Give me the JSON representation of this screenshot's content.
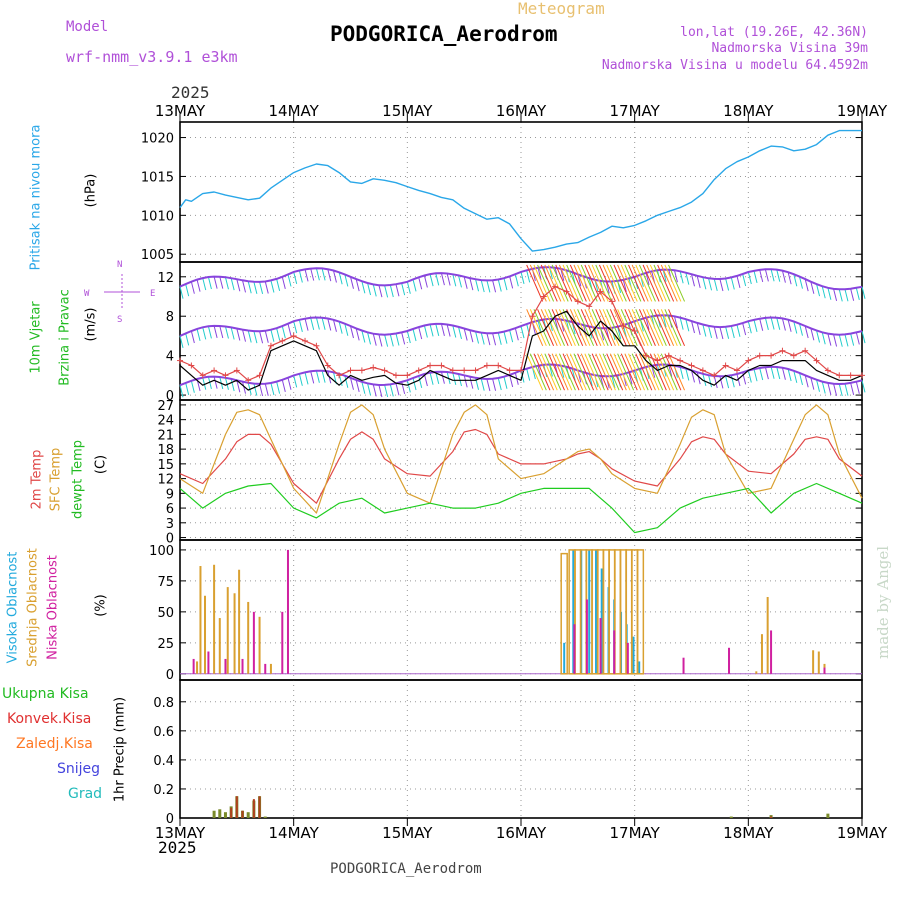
{
  "header": {
    "model_label": "Model",
    "model_name": "wrf-nmm_v3.9.1 e3km",
    "meteogram_label": "Meteogram",
    "station": "PODGORICA_Aerodrom",
    "lonlat": "lon,lat (19.26E, 42.36N)",
    "elevation": "Nadmorska Visina 39m",
    "model_elevation": "Nadmorska Visina u modelu 64.4592m",
    "year_top": "2025",
    "year_bottom": "2025",
    "footer_station": "PODGORICA_Aerodrom",
    "watermark": "made by Angel"
  },
  "colors": {
    "pressure": "#2aa7e8",
    "temp2m": "#e04848",
    "sfc": "#d9a030",
    "dewpt": "#1fcc1f",
    "high_cloud": "#22aadd",
    "mid_cloud": "#d9a030",
    "low_cloud": "#d020a0",
    "total_rain": "#22bb22",
    "conv_rain": "#e03030",
    "frozen": "#ff7722",
    "snow": "#4444dd",
    "grad": "#22bbbb",
    "wind_gust": "#e04848",
    "wind_speed": "#000000"
  },
  "panel_labels": {
    "pressure": [
      "Pritisak na nivou mora",
      "(hPa)"
    ],
    "wind": [
      "10m Vjetar",
      "Brzina i Pravac",
      "(m/s)"
    ],
    "compass": {
      "n": "N",
      "s": "S",
      "e": "E",
      "w": "W"
    },
    "temp": [
      "2m Temp",
      "SFC Temp",
      "dewpt Temp",
      "(C)"
    ],
    "cloud": [
      "Visoka Oblacnost",
      "Srednja Oblacnost",
      "Niska Oblacnost",
      "(%)"
    ],
    "precip_axis": [
      "1hr Precip (mm)"
    ],
    "precip_legend": [
      "Ukupna Kisa",
      "Konvek.Kisa",
      "Zaledj.Kisa",
      "Snijeg",
      "Grad"
    ]
  },
  "chart_data": {
    "type": "line",
    "x_axis": {
      "unit": "day index (0 = 13MAY 00Z)",
      "range": [
        0,
        6
      ],
      "tick_labels": [
        "13MAY",
        "14MAY",
        "15MAY",
        "16MAY",
        "17MAY",
        "18MAY",
        "19MAY"
      ]
    },
    "panels": {
      "pressure": {
        "ylabel": "hPa",
        "ylim": [
          1004,
          1022
        ],
        "yticks": [
          1005,
          1010,
          1015,
          1020
        ],
        "series": [
          {
            "name": "MSL pressure",
            "color_key": "pressure",
            "x": [
              0,
              0.05,
              0.1,
              0.2,
              0.3,
              0.4,
              0.5,
              0.6,
              0.7,
              0.8,
              0.9,
              1.0,
              1.1,
              1.2,
              1.3,
              1.4,
              1.5,
              1.6,
              1.7,
              1.8,
              1.9,
              2.0,
              2.1,
              2.2,
              2.3,
              2.4,
              2.5,
              2.6,
              2.7,
              2.8,
              2.9,
              3.0,
              3.1,
              3.2,
              3.3,
              3.4,
              3.5,
              3.6,
              3.7,
              3.8,
              3.9,
              4.0,
              4.1,
              4.2,
              4.3,
              4.4,
              4.5,
              4.6,
              4.7,
              4.8,
              4.9,
              5.0,
              5.1,
              5.2,
              5.3,
              5.4,
              5.5,
              5.6,
              5.7,
              5.8,
              5.9,
              6.0
            ],
            "y": [
              1011,
              1012,
              1011.8,
              1012.8,
              1013,
              1012.6,
              1012.3,
              1012,
              1012.2,
              1013.5,
              1014.5,
              1015.5,
              1016.1,
              1016.6,
              1016.4,
              1015.5,
              1014.3,
              1014.1,
              1014.7,
              1014.5,
              1014.2,
              1013.7,
              1013.2,
              1012.8,
              1012.3,
              1012,
              1010.9,
              1010.2,
              1009.5,
              1009.7,
              1008.9,
              1007,
              1005.4,
              1005.6,
              1005.9,
              1006.3,
              1006.5,
              1007.2,
              1007.8,
              1008.6,
              1008.4,
              1008.7,
              1009.3,
              1010,
              1010.5,
              1011,
              1011.7,
              1012.8,
              1014.6,
              1016,
              1016.9,
              1017.5,
              1018.3,
              1018.9,
              1018.8,
              1018.3,
              1018.5,
              1019.1,
              1020.3,
              1020.9,
              1020.9,
              1020.9
            ]
          }
        ]
      },
      "wind": {
        "ylabel": "m/s",
        "ylim": [
          -0.5,
          13.5
        ],
        "yticks": [
          0,
          4,
          8,
          12
        ],
        "series": [
          {
            "name": "10m wind speed",
            "color_key": "wind_speed",
            "x": [
              0,
              0.1,
              0.2,
              0.3,
              0.4,
              0.5,
              0.6,
              0.7,
              0.8,
              0.9,
              1.0,
              1.1,
              1.2,
              1.3,
              1.4,
              1.5,
              1.6,
              1.7,
              1.8,
              1.9,
              2.0,
              2.1,
              2.2,
              2.3,
              2.4,
              2.5,
              2.6,
              2.7,
              2.8,
              2.9,
              3.0,
              3.1,
              3.2,
              3.3,
              3.4,
              3.5,
              3.6,
              3.7,
              3.8,
              3.9,
              4.0,
              4.1,
              4.2,
              4.3,
              4.4,
              4.5,
              4.6,
              4.7,
              4.8,
              4.9,
              5.0,
              5.1,
              5.2,
              5.3,
              5.4,
              5.5,
              5.6,
              5.7,
              5.8,
              5.9,
              6.0
            ],
            "y": [
              3,
              2,
              1,
              1.5,
              1,
              1.5,
              0.5,
              1,
              4.5,
              5,
              5.5,
              5,
              4.5,
              2,
              1,
              2,
              1.5,
              1.8,
              2,
              1.2,
              1,
              1.5,
              2.5,
              2,
              1.5,
              1.5,
              1.5,
              2,
              2.5,
              2,
              1.5,
              6,
              6.5,
              8,
              8.5,
              7,
              6,
              7.5,
              6.5,
              5,
              5,
              3.5,
              2.5,
              3,
              3,
              2.5,
              1.5,
              1,
              2,
              1.5,
              2.5,
              3,
              3,
              3.5,
              3.5,
              3.5,
              2.5,
              2,
              1.5,
              1.5,
              2
            ]
          },
          {
            "name": "10m wind gust",
            "color_key": "wind_gust",
            "x": [
              0,
              0.1,
              0.2,
              0.3,
              0.4,
              0.5,
              0.6,
              0.7,
              0.8,
              0.9,
              1.0,
              1.1,
              1.2,
              1.3,
              1.4,
              1.5,
              1.6,
              1.7,
              1.8,
              1.9,
              2.0,
              2.1,
              2.2,
              2.3,
              2.4,
              2.5,
              2.6,
              2.7,
              2.8,
              2.9,
              3.0,
              3.1,
              3.2,
              3.3,
              3.4,
              3.5,
              3.6,
              3.7,
              3.8,
              3.9,
              4.0,
              4.1,
              4.2,
              4.3,
              4.4,
              4.5,
              4.6,
              4.7,
              4.8,
              4.9,
              5.0,
              5.1,
              5.2,
              5.3,
              5.4,
              5.5,
              5.6,
              5.7,
              5.8,
              5.9,
              6.0
            ],
            "y": [
              3.5,
              3,
              2,
              2.5,
              2,
              2.5,
              1.5,
              2,
              5,
              5.5,
              6,
              5.5,
              5,
              3,
              2,
              2.5,
              2.5,
              2.8,
              2.5,
              2,
              2,
              2.5,
              3,
              3,
              2.5,
              2.5,
              2.5,
              3,
              3,
              2.5,
              2.5,
              8,
              10,
              11,
              10.5,
              9.5,
              9,
              10.5,
              9.5,
              7,
              6.5,
              4,
              3.5,
              4,
              3.5,
              3,
              2.5,
              2,
              3,
              2.5,
              3.5,
              4,
              4,
              4.5,
              4,
              4.5,
              3.5,
              2.5,
              2,
              2,
              2
            ]
          }
        ],
        "barb_lines": {
          "x": [
            0,
            1,
            2,
            3,
            4,
            5,
            6
          ],
          "upper_y": [
            11,
            12.5,
            11.5,
            12.5,
            12,
            12.5,
            11
          ],
          "mid_y": [
            6,
            7.5,
            6.5,
            7,
            7.5,
            7.5,
            6.5
          ],
          "low_y": [
            1,
            2,
            1.5,
            2.5,
            2.5,
            2.5,
            1.5
          ]
        }
      },
      "temperature": {
        "ylabel": "C",
        "ylim": [
          -0.5,
          28
        ],
        "yticks": [
          0,
          3,
          6,
          9,
          12,
          15,
          18,
          21,
          24,
          27
        ],
        "series": [
          {
            "name": "2m Temp",
            "color_key": "temp2m",
            "x": [
              0,
              0.2,
              0.4,
              0.5,
              0.6,
              0.7,
              0.8,
              1.0,
              1.2,
              1.4,
              1.5,
              1.6,
              1.7,
              1.8,
              2.0,
              2.2,
              2.4,
              2.5,
              2.6,
              2.7,
              2.8,
              3.0,
              3.2,
              3.4,
              3.5,
              3.6,
              3.7,
              3.8,
              4.0,
              4.2,
              4.4,
              4.5,
              4.6,
              4.7,
              4.8,
              5.0,
              5.2,
              5.4,
              5.5,
              5.6,
              5.7,
              5.8,
              6.0
            ],
            "y": [
              13,
              11,
              16,
              19.5,
              21,
              21,
              19,
              11,
              7,
              16,
              20,
              21.5,
              20,
              16,
              13,
              12.5,
              17.5,
              21.5,
              22,
              21,
              17,
              15,
              15,
              16,
              17,
              17.5,
              16,
              14,
              11.5,
              10.5,
              16,
              19.5,
              20.5,
              20,
              17,
              13.5,
              13,
              17,
              20,
              20.5,
              20,
              16,
              12.5
            ]
          },
          {
            "name": "SFC Temp",
            "color_key": "sfc",
            "x": [
              0,
              0.2,
              0.4,
              0.5,
              0.6,
              0.7,
              0.8,
              1.0,
              1.2,
              1.4,
              1.5,
              1.6,
              1.7,
              1.8,
              2.0,
              2.2,
              2.4,
              2.5,
              2.6,
              2.7,
              2.8,
              3.0,
              3.2,
              3.4,
              3.5,
              3.6,
              3.7,
              3.8,
              4.0,
              4.2,
              4.4,
              4.5,
              4.6,
              4.7,
              4.8,
              5.0,
              5.2,
              5.4,
              5.5,
              5.6,
              5.7,
              5.8,
              6.0
            ],
            "y": [
              12,
              9,
              21,
              25.5,
              26,
              25,
              20,
              10,
              5,
              19,
              25.5,
              27,
              25,
              18,
              9,
              7,
              21,
              25.5,
              27,
              25,
              16,
              12,
              13,
              16,
              17.5,
              18,
              16,
              13,
              10,
              9,
              19,
              24.5,
              26,
              25,
              17,
              9,
              10,
              20,
              25,
              27,
              25,
              17,
              8
            ]
          },
          {
            "name": "dewpt Temp",
            "color_key": "dewpt",
            "x": [
              0,
              0.2,
              0.4,
              0.6,
              0.8,
              1.0,
              1.2,
              1.4,
              1.6,
              1.8,
              2.0,
              2.2,
              2.4,
              2.6,
              2.8,
              3.0,
              3.2,
              3.4,
              3.6,
              3.8,
              4.0,
              4.2,
              4.4,
              4.6,
              4.8,
              5.0,
              5.2,
              5.4,
              5.6,
              5.8,
              6.0
            ],
            "y": [
              10,
              6,
              9,
              10.5,
              11,
              6,
              4,
              7,
              8,
              5,
              6,
              7,
              6,
              6,
              7,
              9,
              10,
              10,
              10,
              6,
              1,
              2,
              6,
              8,
              9,
              10,
              5,
              9,
              11,
              9,
              7
            ]
          }
        ]
      },
      "cloud": {
        "ylabel": "%",
        "ylim": [
          -5,
          108
        ],
        "yticks": [
          0,
          25,
          50,
          75,
          100
        ],
        "high_cloud": {
          "x": [
            3.38,
            3.46,
            3.53,
            3.6,
            3.66,
            3.71,
            3.77,
            3.82,
            3.88,
            3.93,
            3.99,
            4.04
          ],
          "y": [
            25,
            100,
            100,
            100,
            100,
            85,
            70,
            60,
            50,
            40,
            30,
            10
          ]
        },
        "mid_cloud": {
          "x": [
            0.15,
            0.18,
            0.22,
            0.3,
            0.35,
            0.42,
            0.48,
            0.52,
            0.6,
            0.7,
            0.8,
            3.38,
            3.45,
            3.5,
            3.55,
            3.6,
            3.65,
            3.7,
            3.75,
            3.8,
            3.85,
            3.9,
            3.95,
            4.0,
            4.05,
            5.07,
            5.12,
            5.17,
            5.57,
            5.62,
            5.67
          ],
          "y": [
            10,
            87,
            63,
            88,
            45,
            70,
            65,
            84,
            58,
            46,
            8,
            97,
            100,
            100,
            100,
            100,
            100,
            100,
            100,
            100,
            100,
            100,
            100,
            100,
            100,
            2,
            32,
            62,
            19,
            18,
            8
          ]
        },
        "low_cloud": {
          "x": [
            0.12,
            0.25,
            0.4,
            0.55,
            0.65,
            0.75,
            0.9,
            0.95,
            3.47,
            3.58,
            3.7,
            3.82,
            3.94,
            4.43,
            4.83,
            5.2,
            5.67
          ],
          "y": [
            12,
            18,
            12,
            12,
            50,
            8,
            50,
            100,
            40,
            60,
            45,
            35,
            25,
            13,
            21,
            35,
            5
          ]
        }
      },
      "precipitation": {
        "ylabel": "1hr Precip (mm)",
        "ylim": [
          0,
          0.95
        ],
        "yticks": [
          0,
          0.2,
          0.4,
          0.6,
          0.8
        ],
        "total_rain": {
          "x": [
            0.3,
            0.35,
            0.4,
            0.45,
            0.5,
            0.55,
            0.6,
            0.65,
            0.7,
            0.75,
            4.85,
            5.2,
            5.7
          ],
          "y": [
            0.05,
            0.06,
            0.04,
            0.08,
            0.15,
            0.05,
            0.04,
            0.12,
            0.15,
            0.01,
            0.01,
            0.02,
            0.03
          ]
        },
        "conv_rain": {
          "x": [
            0.45,
            0.5,
            0.55,
            0.65,
            0.7,
            5.2
          ],
          "y": [
            0.07,
            0.15,
            0.05,
            0.13,
            0.15,
            0.01
          ]
        }
      }
    }
  }
}
